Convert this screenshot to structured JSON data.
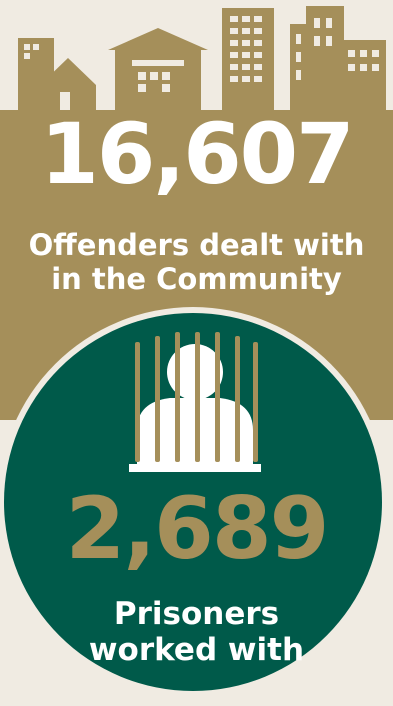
{
  "community": {
    "number": "16,607",
    "label_line1": "Offenders dealt with",
    "label_line2": "in the Community"
  },
  "prison": {
    "number": "2,689",
    "label_line1": "Prisoners",
    "label_line2": "worked with"
  },
  "icons": [
    "buildings-skyline-icon",
    "prisoner-behind-bars-icon"
  ],
  "colors": {
    "background": "#f0ebe2",
    "gold": "#a58f5a",
    "green": "#005a4a",
    "white": "#ffffff"
  }
}
